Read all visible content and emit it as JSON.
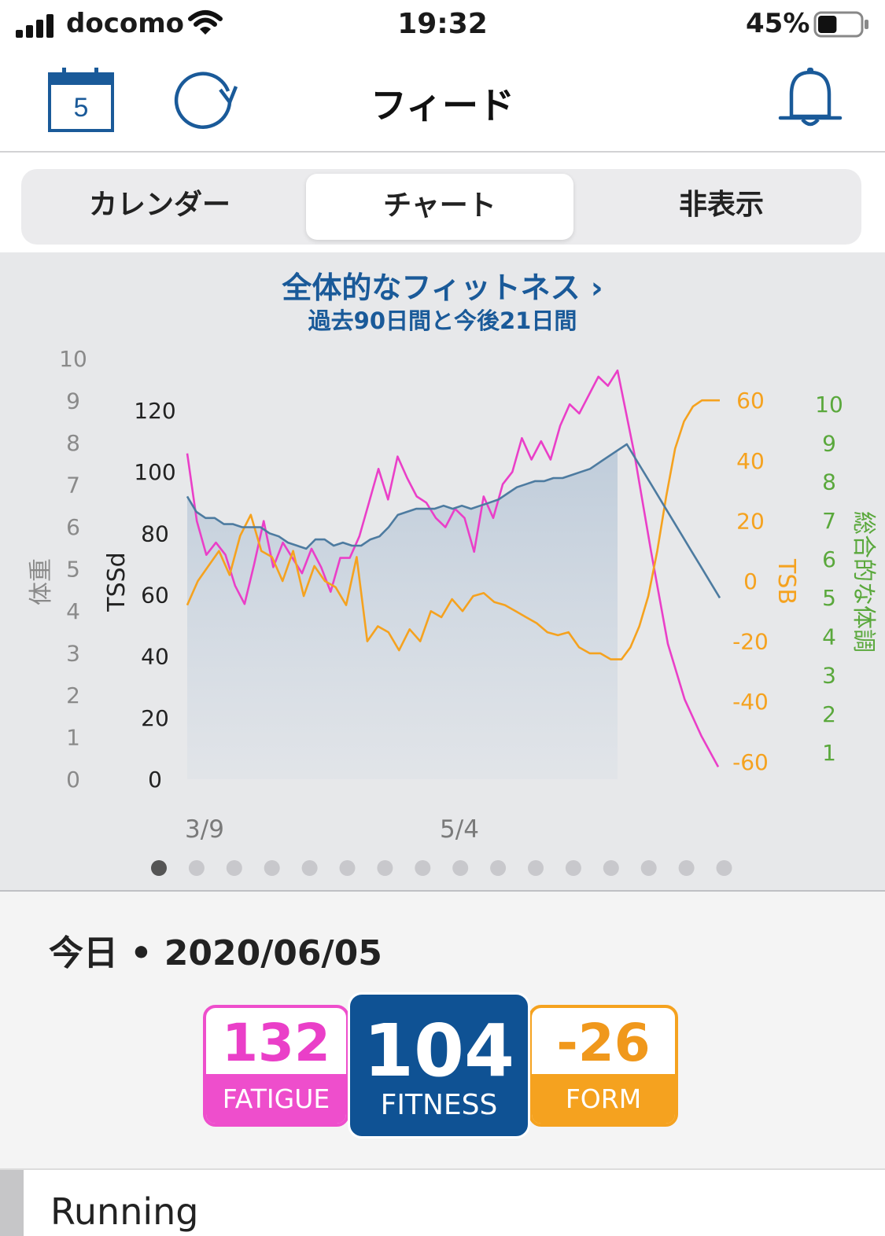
{
  "status_bar": {
    "carrier": "docomo",
    "time": "19:32",
    "battery": "45%",
    "battery_level": 0.45
  },
  "nav": {
    "calendar_day": "5",
    "title": "フィード"
  },
  "segments": {
    "items": [
      "カレンダー",
      "チャート",
      "非表示"
    ],
    "selected": "チャート"
  },
  "chart_header": {
    "title": "全体的なフィットネス ›",
    "subtitle": "過去90日間と今後21日間"
  },
  "chart_data": {
    "type": "line",
    "x_ticks": [
      "3/9",
      "5/4"
    ],
    "axes": {
      "weight": {
        "label": "体重",
        "ticks": [
          "0",
          "1",
          "2",
          "3",
          "4",
          "5",
          "6",
          "7",
          "8",
          "9",
          "10"
        ]
      },
      "tss": {
        "label": "TSSd",
        "ticks": [
          "0",
          "20",
          "40",
          "60",
          "80",
          "100",
          "120"
        ],
        "ylim": [
          0,
          130
        ]
      },
      "tsb": {
        "label": "TSB",
        "ticks": [
          "-60",
          "-40",
          "-20",
          "0",
          "20",
          "40",
          "60"
        ],
        "ylim": [
          -60,
          60
        ]
      },
      "overall": {
        "label": "総合的な体調",
        "ticks": [
          "1",
          "2",
          "3",
          "4",
          "5",
          "6",
          "7",
          "8",
          "9",
          "10"
        ]
      }
    },
    "series": [
      {
        "name": "FITNESS",
        "axis": "tss",
        "color": "#4d7ba0",
        "values": [
          92,
          87,
          85,
          85,
          83,
          83,
          82,
          82,
          82,
          80,
          79,
          77,
          76,
          75,
          78,
          78,
          76,
          77,
          76,
          76,
          78,
          79,
          82,
          86,
          87,
          88,
          88,
          88,
          89,
          88,
          89,
          88,
          89,
          90,
          91,
          93,
          95,
          96,
          97,
          97,
          98,
          98,
          99,
          100,
          101,
          103,
          105,
          107,
          109,
          104,
          99,
          94,
          89,
          84,
          79,
          74,
          69,
          64,
          59
        ]
      },
      {
        "name": "FATIGUE",
        "axis": "tss",
        "color": "#ea3fc8",
        "values": [
          106,
          84,
          73,
          77,
          73,
          63,
          57,
          70,
          84,
          69,
          77,
          72,
          67,
          75,
          69,
          61,
          72,
          72,
          79,
          90,
          101,
          91,
          105,
          98,
          92,
          90,
          85,
          82,
          88,
          85,
          74,
          92,
          85,
          96,
          100,
          111,
          104,
          110,
          104,
          115,
          122,
          119,
          125,
          131,
          128,
          133,
          106,
          74,
          44,
          26,
          14,
          4
        ]
      },
      {
        "name": "FORM",
        "axis": "tsb",
        "color": "#f5a21f",
        "values": [
          -8,
          0,
          5,
          10,
          2,
          15,
          22,
          10,
          8,
          0,
          10,
          -5,
          5,
          0,
          -2,
          -8,
          8,
          -20,
          -15,
          -17,
          -23,
          -16,
          -20,
          -10,
          -12,
          -6,
          -10,
          -5,
          -4,
          -7,
          -8,
          -10,
          -12,
          -14,
          -17,
          -18,
          -17,
          -22,
          -24,
          -24,
          -26,
          -26,
          -22,
          -15,
          -5,
          10,
          28,
          44,
          53,
          58,
          60,
          60,
          60
        ]
      }
    ]
  },
  "pager": {
    "count": 16,
    "active": 0
  },
  "today": {
    "label": "今日 • 2020/06/05",
    "fatigue": {
      "value": "132",
      "label": "FATIGUE"
    },
    "fitness": {
      "value": "104",
      "label": "FITNESS"
    },
    "form": {
      "value": "-26",
      "label": "FORM"
    }
  },
  "sport": {
    "label": "Running"
  },
  "colors": {
    "brand_blue": "#0f5294",
    "fatigue_pink": "#ea3fc8",
    "form_orange": "#f5a21f",
    "overall_green": "#5aa83c"
  }
}
